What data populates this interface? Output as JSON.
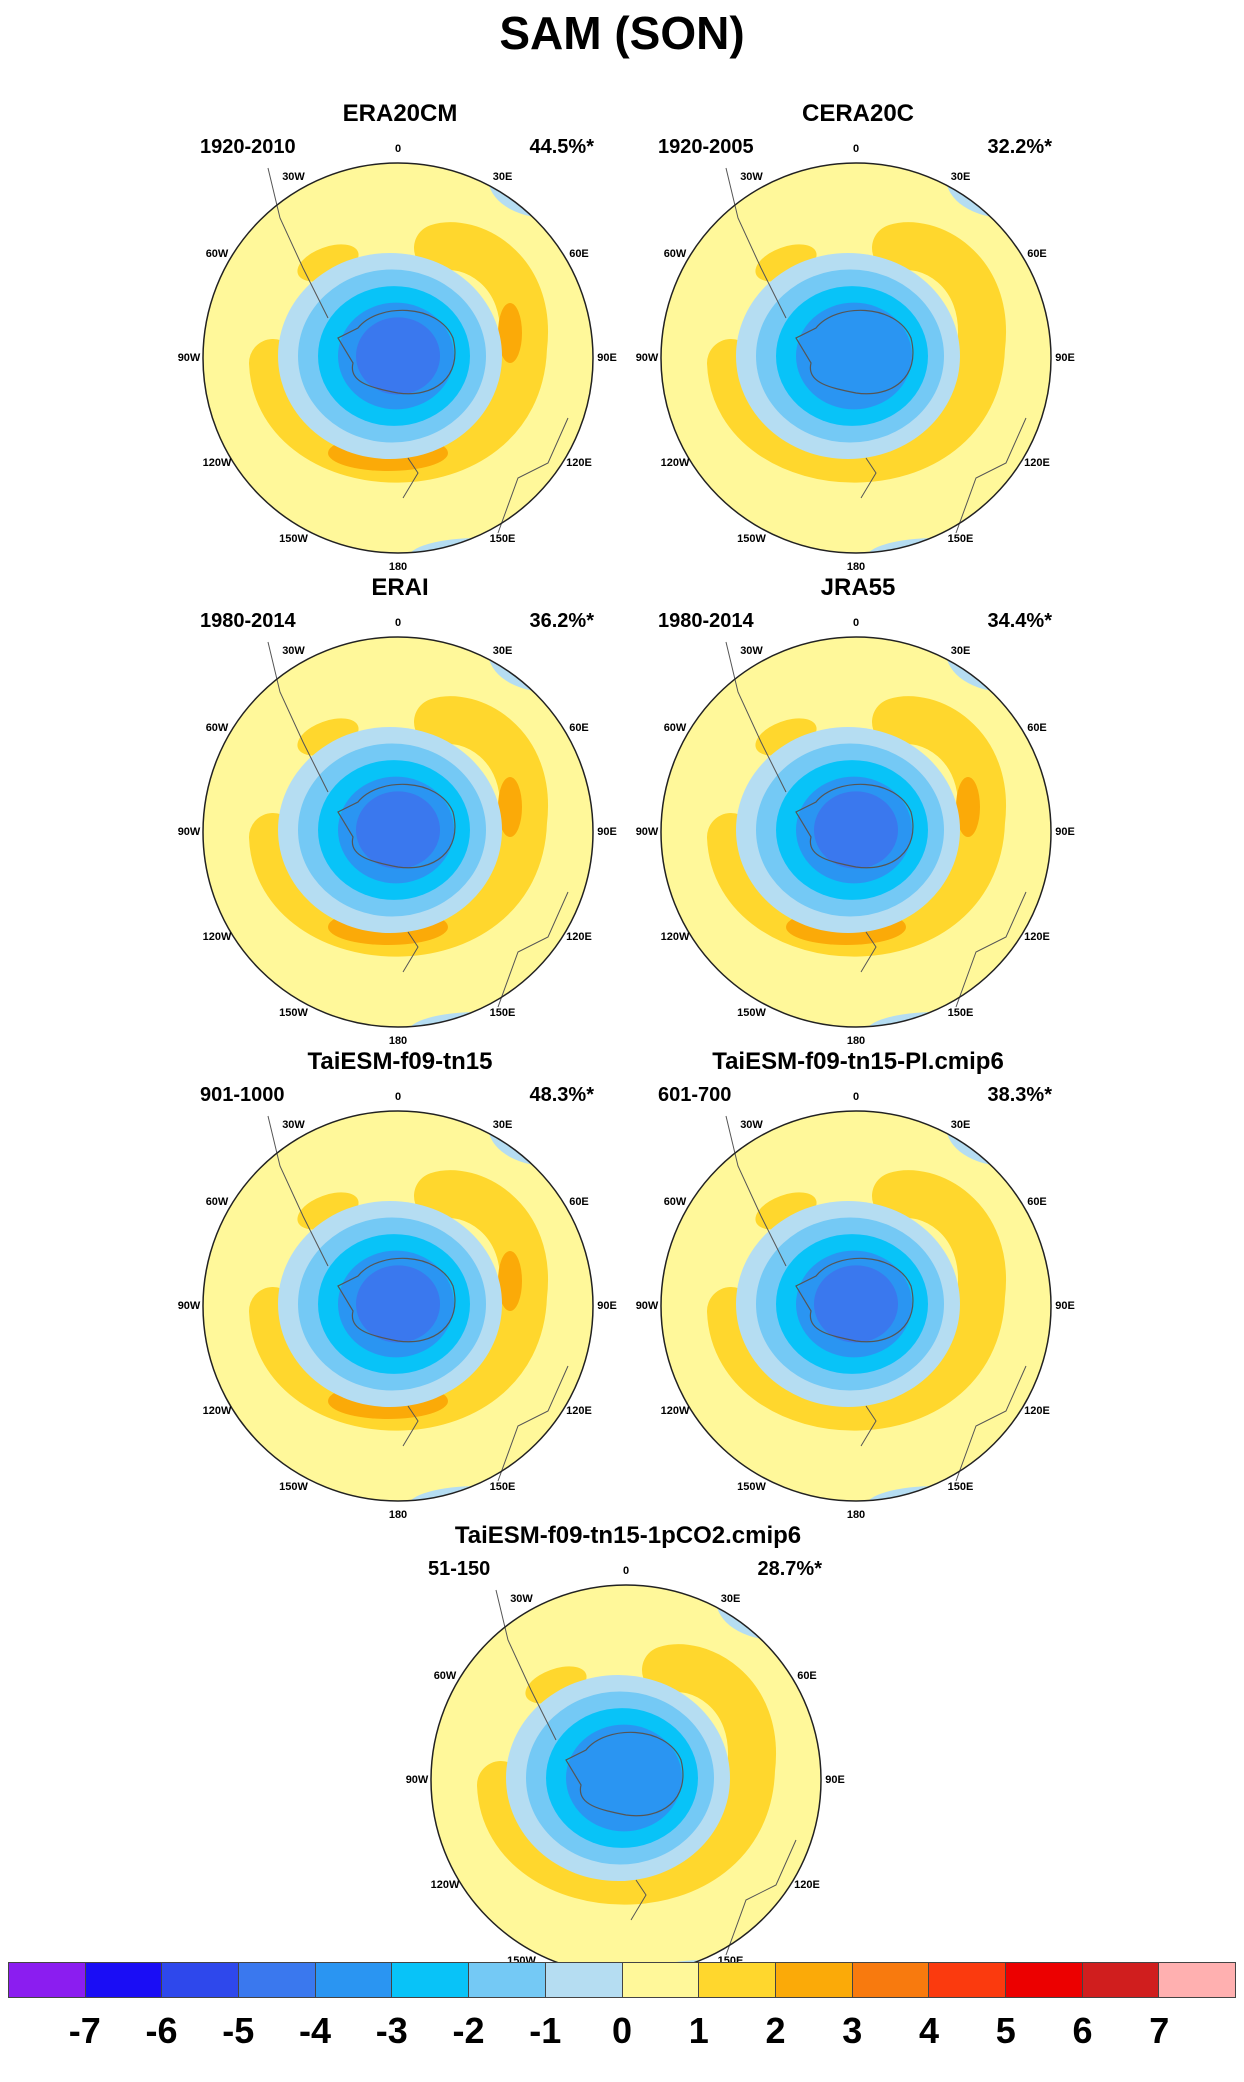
{
  "title": "SAM (SON)",
  "colors": {
    "c_m7": "#8B1DF0",
    "c_m6": "#1A0DF5",
    "c_m5": "#2E48EC",
    "c_m4": "#3A78EE",
    "c_m3": "#2A95F2",
    "c_m2": "#08C3F8",
    "c_m1": "#74C9F5",
    "c_m05": "#B5DDF2",
    "c_p05": "#FFF89A",
    "c_p1": "#FFD72D",
    "c_p2": "#FBAA08",
    "c_p3": "#F87A0E",
    "c_p4": "#FB3A0E",
    "c_p5": "#EC0000",
    "c_p6": "#D01E1E",
    "c_p7": "#FFB0B0"
  },
  "panels": [
    {
      "name": "ERA20CM",
      "period": "1920-2010",
      "variance": "44.5%*",
      "core": 3,
      "ring": 2,
      "minlevel": "-5"
    },
    {
      "name": "CERA20C",
      "period": "1920-2005",
      "variance": "32.2%*",
      "core": 2,
      "ring": 1,
      "minlevel": "-3"
    },
    {
      "name": "ERAI",
      "period": "1980-2014",
      "variance": "36.2%*",
      "core": 3,
      "ring": 2,
      "minlevel": "-4"
    },
    {
      "name": "JRA55",
      "period": "1980-2014",
      "variance": "34.4%*",
      "core": 3,
      "ring": 2,
      "minlevel": "-4"
    },
    {
      "name": "TaiESM-f09-tn15",
      "period": "901-1000",
      "variance": "48.3%*",
      "core": 3,
      "ring": 2,
      "minlevel": "-4"
    },
    {
      "name": "TaiESM-f09-tn15-PI.cmip6",
      "period": "601-700",
      "variance": "38.3%*",
      "core": 3,
      "ring": 1,
      "minlevel": "-4"
    },
    {
      "name": "TaiESM-f09-tn15-1pCO2.cmip6",
      "period": "51-150",
      "variance": "28.7%*",
      "core": 2,
      "ring": 1,
      "minlevel": "-3"
    }
  ],
  "longitude_labels": [
    "0",
    "30E",
    "60E",
    "90E",
    "120E",
    "150E",
    "180",
    "150W",
    "120W",
    "90W",
    "60W",
    "30W"
  ],
  "colorbar": {
    "ticks": [
      "-7",
      "-6",
      "-5",
      "-4",
      "-3",
      "-2",
      "-1",
      "0",
      "1",
      "2",
      "3",
      "4",
      "5",
      "6",
      "7"
    ]
  }
}
